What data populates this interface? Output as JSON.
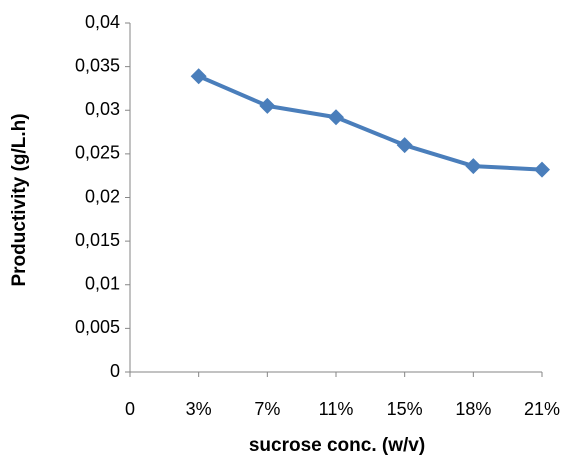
{
  "chart_data": {
    "type": "line",
    "x_label": "sucrose conc. (w/v)",
    "y_label": "Productivity (g/L.h)",
    "categories": [
      "0",
      "3%",
      "7%",
      "11%",
      "15%",
      "18%",
      "21%"
    ],
    "series": [
      {
        "name": "Productivity",
        "color": "#4a7ebb",
        "values": [
          null,
          0.0339,
          0.0305,
          0.0292,
          0.026,
          0.0236,
          0.0232
        ]
      }
    ],
    "ylim": [
      0,
      0.04
    ],
    "yticks": [
      0,
      {
        "value": 0.005,
        "label": "0,005"
      },
      {
        "value": 0.01,
        "label": "0,01"
      },
      {
        "value": 0.015,
        "label": "0,015"
      },
      {
        "value": 0.02,
        "label": "0,02"
      },
      {
        "value": 0.025,
        "label": "0,025"
      },
      {
        "value": 0.03,
        "label": "0,03"
      },
      {
        "value": 0.035,
        "label": "0,035"
      },
      {
        "value": 0.04,
        "label": "0,04"
      }
    ],
    "grid": false
  }
}
